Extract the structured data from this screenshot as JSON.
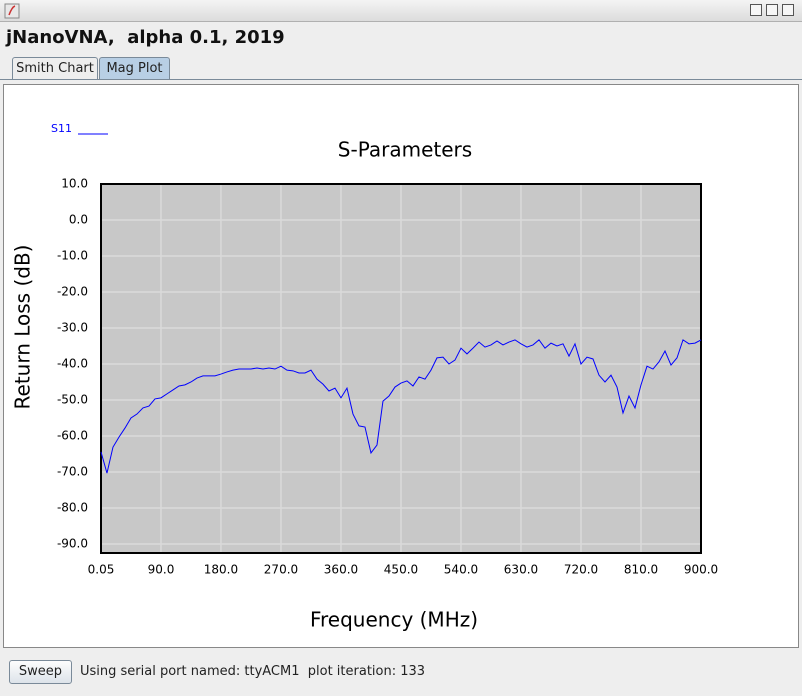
{
  "window": {
    "title": "jNanoVNA,  alpha 0.1, 2019"
  },
  "tabs": [
    "Smith Chart",
    "Mag Plot"
  ],
  "chart_data": {
    "type": "line",
    "title": "S-Parameters",
    "x_label": "Frequency (MHz)",
    "y_label": "Return Loss (dB)",
    "x": [
      0.05,
      9,
      18,
      27,
      36,
      45,
      54,
      63,
      72,
      81,
      90,
      99,
      108,
      117,
      126,
      135,
      144,
      153,
      162,
      171,
      180,
      189,
      198,
      207,
      216,
      225,
      234,
      243,
      252,
      261,
      270,
      279,
      288,
      297,
      306,
      315,
      324,
      333,
      342,
      351,
      360,
      369,
      378,
      387,
      396,
      405,
      414,
      423,
      432,
      441,
      450,
      459,
      468,
      477,
      486,
      495,
      504,
      513,
      522,
      531,
      540,
      549,
      558,
      567,
      576,
      585,
      594,
      603,
      612,
      621,
      630,
      639,
      648,
      657,
      666,
      675,
      684,
      693,
      702,
      711,
      720,
      729,
      738,
      747,
      756,
      765,
      774,
      783,
      792,
      801,
      810,
      819,
      828,
      837,
      846,
      855,
      864,
      873,
      882,
      891,
      900
    ],
    "series": [
      {
        "name": "S11",
        "color": "#0000ff",
        "values": [
          -64.4,
          -70.3,
          -63.1,
          -60.3,
          -57.8,
          -55,
          -53.9,
          -52.2,
          -51.7,
          -49.7,
          -49.4,
          -48.3,
          -47.2,
          -46.1,
          -45.8,
          -45,
          -43.9,
          -43.3,
          -43.3,
          -43.3,
          -42.8,
          -42.2,
          -41.7,
          -41.4,
          -41.4,
          -41.4,
          -41.1,
          -41.4,
          -41.1,
          -41.4,
          -40.6,
          -41.7,
          -41.9,
          -42.5,
          -42.5,
          -41.7,
          -44.2,
          -45.6,
          -47.5,
          -46.7,
          -49.4,
          -46.7,
          -53.9,
          -57.2,
          -57.5,
          -64.7,
          -62.5,
          -50.3,
          -48.9,
          -46.4,
          -45.3,
          -44.7,
          -46.1,
          -43.6,
          -44.2,
          -41.7,
          -38.3,
          -38.1,
          -40,
          -38.9,
          -35.6,
          -37.2,
          -35.6,
          -33.9,
          -35.3,
          -34.7,
          -33.6,
          -34.7,
          -33.9,
          -33.3,
          -34.4,
          -35.3,
          -34.7,
          -33.3,
          -35.6,
          -34.2,
          -35,
          -34.4,
          -37.8,
          -34.4,
          -40,
          -38.1,
          -38.6,
          -43.1,
          -45,
          -43.1,
          -46.4,
          -53.6,
          -48.9,
          -52.2,
          -45.8,
          -40.6,
          -41.4,
          -39.4,
          -36.4,
          -40.3,
          -38.3,
          -33.3,
          -34.4,
          -34.2,
          -33.3
        ]
      }
    ],
    "xlim": [
      0.05,
      900
    ],
    "ylim": [
      -92.5,
      10
    ],
    "xticks": [
      0.05,
      {
        "value": 90,
        "label": "90.0"
      },
      {
        "value": 180,
        "label": "180.0"
      },
      {
        "value": 270,
        "label": "270.0"
      },
      {
        "value": 360,
        "label": "360.0"
      },
      {
        "value": 450,
        "label": "450.0"
      },
      {
        "value": 540,
        "label": "540.0"
      },
      {
        "value": 630,
        "label": "630.0"
      },
      {
        "value": 720,
        "label": "720.0"
      },
      {
        "value": 810,
        "label": "810.0"
      },
      {
        "value": 900,
        "label": "900.0"
      }
    ],
    "yticks": [
      {
        "value": 10,
        "label": "10.0"
      },
      {
        "value": 0,
        "label": "0.0"
      },
      {
        "value": -10,
        "label": "-10.0"
      },
      {
        "value": -20,
        "label": "-20.0"
      },
      {
        "value": -30,
        "label": "-30.0"
      },
      {
        "value": -40,
        "label": "-40.0"
      },
      {
        "value": -50,
        "label": "-50.0"
      },
      {
        "value": -60,
        "label": "-60.0"
      },
      {
        "value": -70,
        "label": "-70.0"
      },
      {
        "value": -80,
        "label": "-80.0"
      },
      {
        "value": -90,
        "label": "-90.0"
      }
    ],
    "grid": true,
    "legend": "top-left"
  },
  "footer": {
    "button": "Sweep",
    "status": "Using serial port named: ttyACM1  plot iteration: 133"
  }
}
